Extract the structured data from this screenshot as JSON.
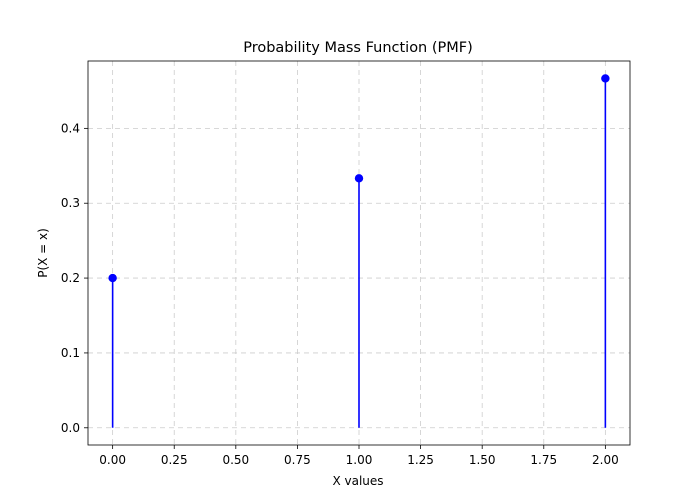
{
  "chart_data": {
    "type": "stem",
    "title": "Probability Mass Function (PMF)",
    "xlabel": "X values",
    "ylabel": "P(X = x)",
    "x": [
      0,
      1,
      2
    ],
    "values": [
      0.2,
      0.3333,
      0.4667
    ],
    "xlim": [
      -0.1,
      2.1
    ],
    "ylim": [
      -0.023,
      0.49
    ],
    "xticks": [
      0,
      0.25,
      0.5,
      0.75,
      1.0,
      1.25,
      1.5,
      1.75,
      2.0
    ],
    "xtick_labels": [
      "0.00",
      "0.25",
      "0.50",
      "0.75",
      "1.00",
      "1.25",
      "1.50",
      "1.75",
      "2.00"
    ],
    "yticks": [
      0.0,
      0.1,
      0.2,
      0.3,
      0.4
    ],
    "ytick_labels": [
      "0.0",
      "0.1",
      "0.2",
      "0.3",
      "0.4"
    ],
    "grid": true,
    "grid_style": "dashed",
    "color": "#0000ff"
  }
}
